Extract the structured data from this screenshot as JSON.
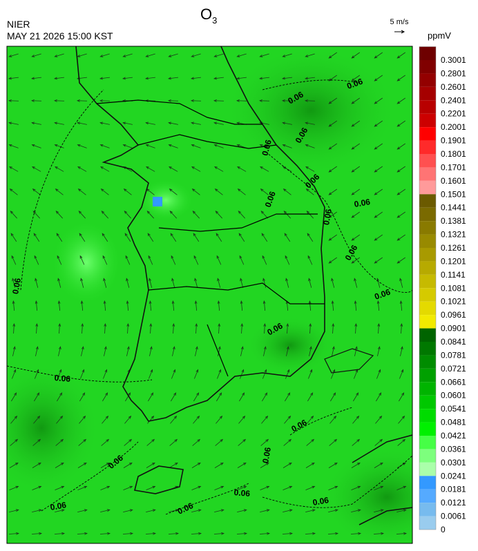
{
  "header": {
    "title": {
      "main": "O",
      "subscript": "3"
    },
    "agency": "NIER",
    "timestamp": "MAY 21 2026 15:00 KST",
    "wind_reference": "5 m/s"
  },
  "colorbar": {
    "unit": "ppmV",
    "labels": [
      "0.3001",
      "0.2801",
      "0.2601",
      "0.2401",
      "0.2201",
      "0.2001",
      "0.1901",
      "0.1801",
      "0.1701",
      "0.1601",
      "0.1501",
      "0.1441",
      "0.1381",
      "0.1321",
      "0.1261",
      "0.1201",
      "0.1141",
      "0.1081",
      "0.1021",
      "0.0961",
      "0.0901",
      "0.0841",
      "0.0781",
      "0.0721",
      "0.0661",
      "0.0601",
      "0.0541",
      "0.0481",
      "0.0421",
      "0.0361",
      "0.0301",
      "0.0241",
      "0.0181",
      "0.0121",
      "0.0061",
      "0"
    ],
    "colors": [
      "#6e0000",
      "#800000",
      "#930000",
      "#a50000",
      "#b80000",
      "#cc0000",
      "#ff0000",
      "#ff2a2a",
      "#ff5050",
      "#ff7474",
      "#ff9a9a",
      "#6b5a00",
      "#7a6a00",
      "#897a00",
      "#988a00",
      "#a89a00",
      "#b7aa00",
      "#c6ba00",
      "#d5ca00",
      "#e4da00",
      "#f2ea00",
      "#006400",
      "#007800",
      "#008c00",
      "#00a000",
      "#00b400",
      "#00c800",
      "#00dc00",
      "#00f000",
      "#46ff46",
      "#7dff7d",
      "#aaffaa",
      "#3399ff",
      "#55aaff",
      "#77bbee",
      "#99ccee"
    ]
  },
  "map": {
    "contour_labels": [
      "0.06",
      "0.06",
      "0.06",
      "0.06",
      "0.06",
      "0.06",
      "0.06",
      "0.06",
      "0.06",
      "0.06",
      "0.06",
      "0.06",
      "0.06",
      "0.06",
      "0.06",
      "0.06",
      "0.06",
      "0.06",
      "0.06",
      "0.06"
    ]
  }
}
